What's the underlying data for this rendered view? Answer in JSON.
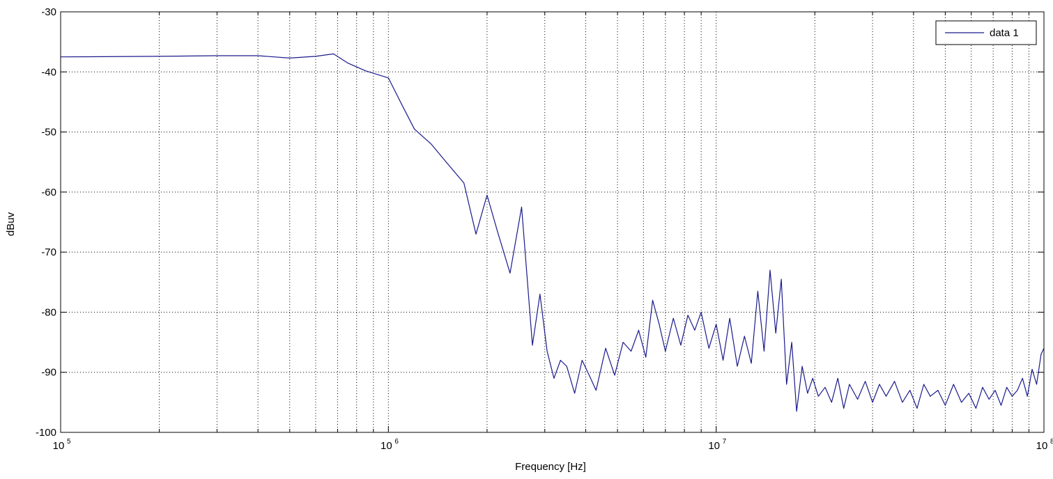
{
  "chart_data": {
    "type": "line",
    "xlabel": "Frequency [Hz]",
    "ylabel": "dBuv",
    "xscale": "log",
    "xlim": [
      100000,
      100000000
    ],
    "ylim": [
      -100,
      -30
    ],
    "grid": true,
    "grid_style": "dotted",
    "legend_position": "top-right",
    "line_color": "#1a1a8c",
    "x_ticks": [
      {
        "base": "10",
        "exp": "5",
        "value": 100000
      },
      {
        "base": "10",
        "exp": "6",
        "value": 1000000
      },
      {
        "base": "10",
        "exp": "7",
        "value": 10000000
      },
      {
        "base": "10",
        "exp": "8",
        "value": 100000000
      }
    ],
    "y_ticks": [
      "-30",
      "-40",
      "-50",
      "-60",
      "-70",
      "-80",
      "-90",
      "-100"
    ],
    "series": [
      {
        "name": "data 1",
        "x": [
          100000,
          200000,
          300000,
          400000,
          500000,
          600000,
          680000,
          750000,
          850000,
          1000000,
          1100000,
          1200000,
          1350000,
          1500000,
          1700000,
          1850000,
          2000000,
          2150000,
          2350000,
          2550000,
          2750000,
          2900000,
          3050000,
          3200000,
          3350000,
          3500000,
          3700000,
          3900000,
          4100000,
          4300000,
          4600000,
          4900000,
          5200000,
          5500000,
          5800000,
          6100000,
          6400000,
          6700000,
          7000000,
          7400000,
          7800000,
          8200000,
          8600000,
          9000000,
          9500000,
          10000000,
          10500000,
          11000000,
          11600000,
          12200000,
          12800000,
          13400000,
          14000000,
          14600000,
          15200000,
          15800000,
          16400000,
          17000000,
          17600000,
          18300000,
          19000000,
          19700000,
          20500000,
          21500000,
          22500000,
          23500000,
          24500000,
          25500000,
          27000000,
          28500000,
          30000000,
          31500000,
          33000000,
          35000000,
          37000000,
          39000000,
          41000000,
          43000000,
          45000000,
          47500000,
          50000000,
          53000000,
          56000000,
          59000000,
          62000000,
          65000000,
          68000000,
          71000000,
          74000000,
          77000000,
          80000000,
          83000000,
          86000000,
          89000000,
          92000000,
          95000000,
          98000000,
          100000000
        ],
        "y": [
          -37.5,
          -37.4,
          -37.3,
          -37.3,
          -37.7,
          -37.4,
          -37.0,
          -38.5,
          -39.8,
          -41.0,
          -45.5,
          -49.5,
          -52.0,
          -55.0,
          -58.5,
          -67.0,
          -60.5,
          -66.5,
          -73.5,
          -62.5,
          -85.5,
          -77.0,
          -86.5,
          -91.0,
          -88.0,
          -89.0,
          -93.5,
          -88.0,
          -90.5,
          -93.0,
          -86.0,
          -90.5,
          -85.0,
          -86.5,
          -83.0,
          -87.5,
          -78.0,
          -82.0,
          -86.5,
          -81.0,
          -85.5,
          -80.5,
          -83.0,
          -80.0,
          -86.0,
          -82.0,
          -88.0,
          -81.0,
          -89.0,
          -84.0,
          -88.5,
          -76.5,
          -86.5,
          -73.0,
          -83.5,
          -74.5,
          -92.0,
          -85.0,
          -96.5,
          -89.0,
          -93.5,
          -91.0,
          -94.0,
          -92.5,
          -95.0,
          -91.0,
          -96.0,
          -92.0,
          -94.5,
          -91.5,
          -95.0,
          -92.0,
          -94.0,
          -91.5,
          -95.0,
          -93.0,
          -96.0,
          -92.0,
          -94.0,
          -93.0,
          -95.5,
          -92.0,
          -95.0,
          -93.5,
          -96.0,
          -92.5,
          -94.5,
          -93.0,
          -95.5,
          -92.5,
          -94.0,
          -93.0,
          -91.0,
          -94.0,
          -89.5,
          -92.0,
          -87.0,
          -86.0
        ]
      }
    ]
  }
}
